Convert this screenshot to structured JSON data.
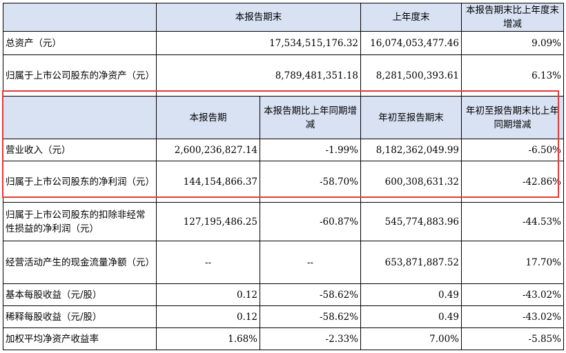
{
  "top_header": [
    "",
    "本报告期末",
    "上年度末",
    "本报告期末比上年度末增减"
  ],
  "top_rows": [
    {
      "label": "总资产（元）",
      "current": "17,534,515,176.32",
      "prior": "16,074,053,477.46",
      "change": "9.09%"
    },
    {
      "label": "归属于上市公司股东的净资产（元）",
      "current": "8,789,481,351.18",
      "prior": "8,281,500,393.61",
      "change": "6.13%"
    }
  ],
  "period_header": [
    "",
    "本报告期",
    "本报告期比上年同期增减",
    "年初至报告期末",
    "年初至报告期末比上年同期增减"
  ],
  "period_rows": [
    {
      "label": "营业收入（元）",
      "q": "2,600,236,827.14",
      "q_chg": "-1.99%",
      "ytd": "8,182,362,049.99",
      "ytd_chg": "-6.50%"
    },
    {
      "label": "归属于上市公司股东的净利润（元）",
      "q": "144,154,866.37",
      "q_chg": "-58.70%",
      "ytd": "600,308,631.32",
      "ytd_chg": "-42.86%"
    },
    {
      "label": "归属于上市公司股东的扣除非经常性损益的净利润（元）",
      "q": "127,195,486.25",
      "q_chg": "-60.87%",
      "ytd": "545,774,883.96",
      "ytd_chg": "-44.53%"
    },
    {
      "label": "经营活动产生的现金流量净额（元）",
      "q": "--",
      "q_chg": "--",
      "ytd": "653,871,887.52",
      "ytd_chg": "17.70%"
    },
    {
      "label": "基本每股收益（元/股）",
      "q": "0.12",
      "q_chg": "-58.62%",
      "ytd": "0.49",
      "ytd_chg": "-43.02%"
    },
    {
      "label": "稀释每股收益（元/股）",
      "q": "0.12",
      "q_chg": "-58.62%",
      "ytd": "0.49",
      "ytd_chg": "-43.02%"
    },
    {
      "label": "加权平均净资产收益率",
      "q": "1.68%",
      "q_chg": "-2.33%",
      "ytd": "7.00%",
      "ytd_chg": "-5.85%"
    }
  ],
  "highlight_color": "#e53935"
}
